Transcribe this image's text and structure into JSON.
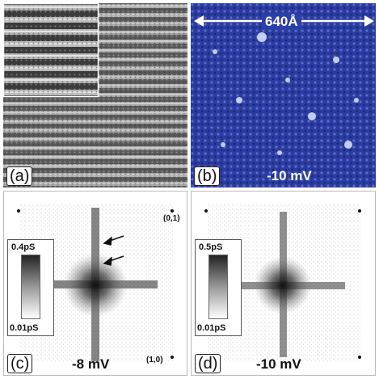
{
  "panels": {
    "a": {
      "label": "(a)"
    },
    "b": {
      "label": "(b)",
      "scale_bar": "640Å",
      "bias": "-10 mV"
    },
    "c": {
      "label": "(c)",
      "bias": "-8 mV",
      "colorbar_max": "0.4pS",
      "colorbar_min": "0.01pS",
      "peak_01": "(0,1)",
      "peak_10": "(1,0)"
    },
    "d": {
      "label": "(d)",
      "bias": "-10 mV",
      "colorbar_max": "0.5pS",
      "colorbar_min": "0.01pS"
    }
  },
  "colors": {
    "topograph_dark": "#3a3a3a",
    "topograph_light": "#d8d8d8",
    "conductance_blue": "#2c3fa8",
    "conductance_bright": "#dde6ff",
    "fft_dark": "#111111"
  }
}
